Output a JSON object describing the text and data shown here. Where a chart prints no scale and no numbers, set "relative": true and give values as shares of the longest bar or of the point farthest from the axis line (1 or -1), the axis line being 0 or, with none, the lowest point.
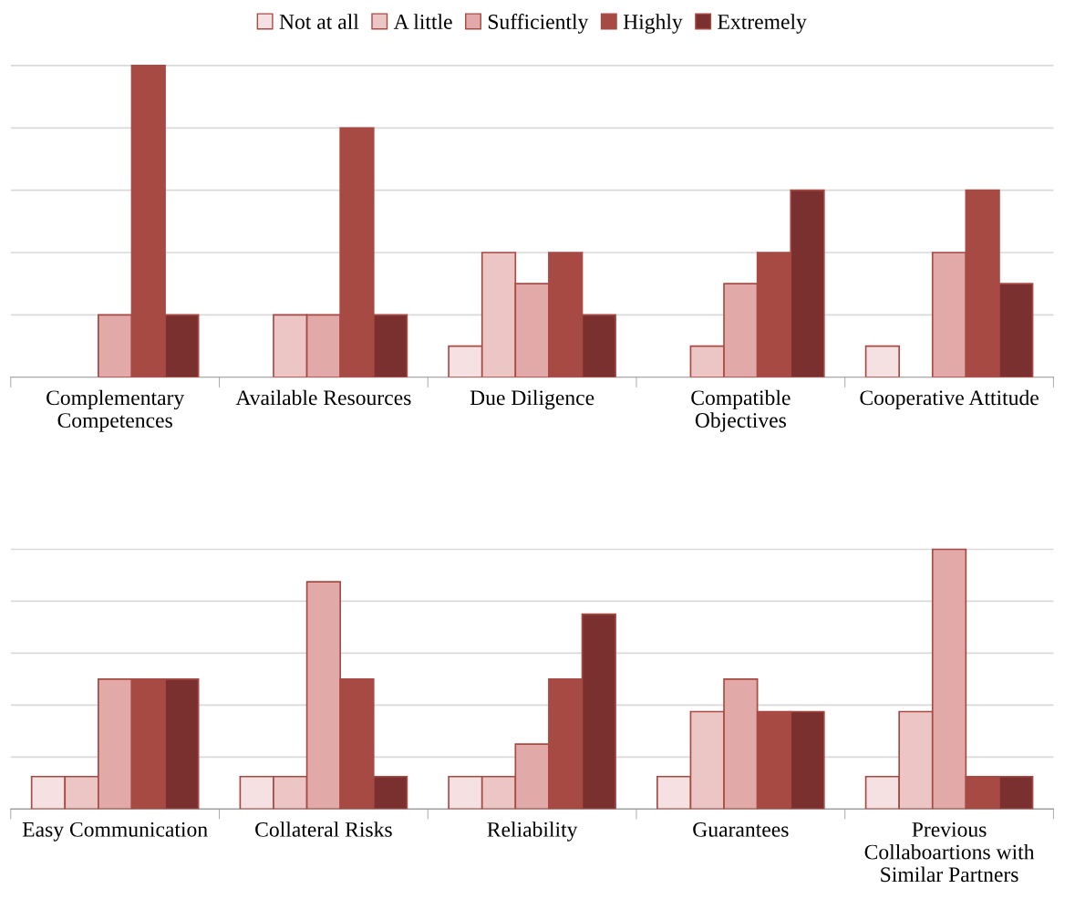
{
  "chart_data": [
    {
      "type": "bar",
      "relative": true,
      "grid": "y",
      "legend": "top",
      "categories": [
        "Complementary\nCompetences",
        "Available Resources",
        "Due Diligence",
        "Compatible\nObjectives",
        "Cooperative Attitude"
      ],
      "series": [
        {
          "name": "Not at all",
          "color": "#f5e1e1",
          "values": [
            0,
            0,
            0.1,
            0,
            0.1
          ]
        },
        {
          "name": "A little",
          "color": "#ecc6c5",
          "values": [
            0,
            0.2,
            0.4,
            0.1,
            0
          ]
        },
        {
          "name": "Sufficiently",
          "color": "#e1a9a7",
          "values": [
            0.2,
            0.2,
            0.3,
            0.3,
            0.4
          ]
        },
        {
          "name": "Highly",
          "color": "#a84a44",
          "values": [
            1,
            0.8,
            0.4,
            0.4,
            0.6
          ]
        },
        {
          "name": "Extremely",
          "color": "#7a302e",
          "values": [
            0.2,
            0.2,
            0.2,
            0.6,
            0.3
          ]
        }
      ]
    },
    {
      "type": "bar",
      "relative": true,
      "grid": "y",
      "legend": false,
      "categories": [
        "Easy Communication",
        "Collateral Risks",
        "Reliability",
        "Guarantees",
        "Previous\nCollaboartions with\nSimilar Partners"
      ],
      "series": [
        {
          "color": "#f5e1e1",
          "values": [
            0.125,
            0.125,
            0.125,
            0.125,
            0.125
          ]
        },
        {
          "color": "#ecc6c5",
          "values": [
            0.125,
            0.125,
            0.125,
            0.375,
            0.375
          ]
        },
        {
          "color": "#e1a9a7",
          "values": [
            0.5,
            0.875,
            0.25,
            0.5,
            1
          ]
        },
        {
          "color": "#a84a44",
          "values": [
            0.5,
            0.5,
            0.5,
            0.375,
            0.125
          ]
        },
        {
          "color": "#7a302e",
          "values": [
            0.5,
            0.125,
            0.75,
            0.375,
            0.125
          ]
        }
      ]
    }
  ]
}
